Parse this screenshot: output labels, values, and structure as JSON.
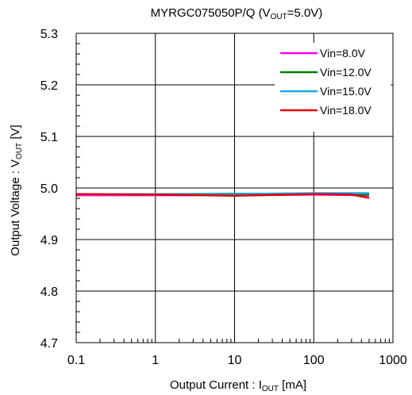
{
  "chart_data": {
    "type": "line",
    "title": {
      "main": "MYRGC075050P/Q (V",
      "sub": "OUT",
      "tail": "=5.0V)"
    },
    "xlabel": {
      "main": "Output Current : I",
      "sub": "OUT",
      "tail": " [mA]"
    },
    "ylabel": {
      "main": "Output Voltage : V",
      "sub": "OUT",
      "tail": " [V]"
    },
    "x_scale": "log",
    "xlim": [
      0.1,
      1000
    ],
    "ylim": [
      4.7,
      5.3
    ],
    "x_ticks": [
      0.1,
      1,
      10,
      100,
      1000
    ],
    "x_tick_labels": [
      "0.1",
      "1",
      "10",
      "100",
      "1000"
    ],
    "y_ticks": [
      4.7,
      4.8,
      4.9,
      5.0,
      5.1,
      5.2,
      5.3
    ],
    "y_tick_labels": [
      "4.7",
      "4.8",
      "4.9",
      "5.0",
      "5.1",
      "5.2",
      "5.3"
    ],
    "grid": true,
    "legend_position": "top-right",
    "series": [
      {
        "name": "Vin=8.0V",
        "color": "#ff00ff",
        "x": [
          0.1,
          1,
          10,
          100,
          500
        ],
        "y": [
          4.986,
          4.986,
          4.986,
          4.987,
          4.986
        ]
      },
      {
        "name": "Vin=12.0V",
        "color": "#008000",
        "x": [
          0.1,
          1,
          10,
          100,
          500
        ],
        "y": [
          4.988,
          4.988,
          4.989,
          4.989,
          4.987
        ]
      },
      {
        "name": "Vin=15.0V",
        "color": "#1fa8e6",
        "x": [
          0.1,
          1,
          10,
          100,
          500
        ],
        "y": [
          4.988,
          4.988,
          4.988,
          4.99,
          4.99
        ]
      },
      {
        "name": "Vin=18.0V",
        "color": "#e00000",
        "x": [
          0.1,
          1,
          10,
          100,
          300,
          500
        ],
        "y": [
          4.988,
          4.987,
          4.985,
          4.988,
          4.987,
          4.981
        ]
      }
    ]
  }
}
